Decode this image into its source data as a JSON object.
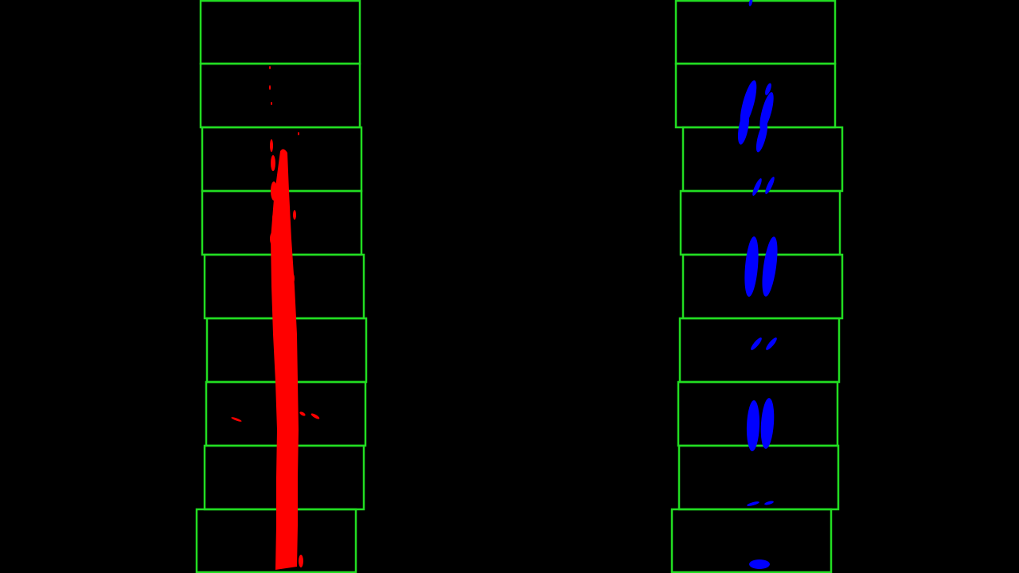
{
  "colors": {
    "background": "#000000",
    "window": "#22dd22",
    "left_lane": "#ff0000",
    "right_lane": "#0000ff"
  }
}
